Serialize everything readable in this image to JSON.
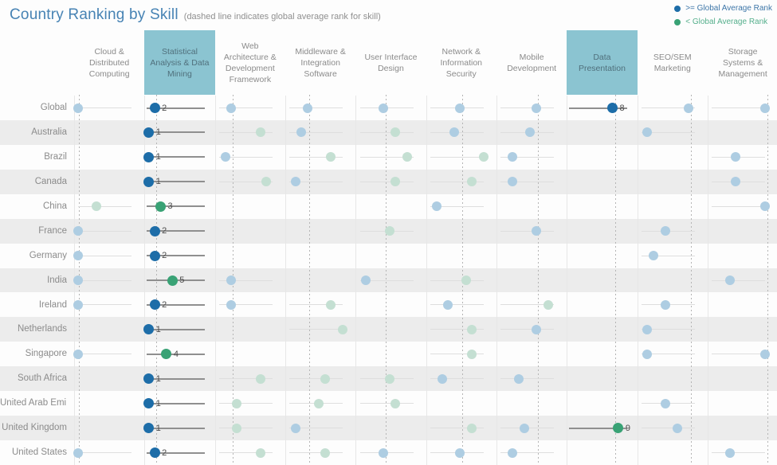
{
  "title": "Country Ranking by Skill",
  "subtitle": "(dashed line indicates global average rank for skill)",
  "legend": {
    "items": [
      {
        "label": ">= Global Average Rank",
        "dot_color": "#1d6da8",
        "text_color": "#3d76a8"
      },
      {
        "label": "< Global Average Rank",
        "dot_color": "#39a275",
        "text_color": "#55af8c"
      }
    ]
  },
  "colors": {
    "strong_blue": "#1d6da8",
    "strong_green": "#39a275",
    "light_blue": "#aecde2",
    "light_green": "#c4dfd2",
    "highlight_bg": "#8bc4d1",
    "highlight_text": "#50707c",
    "header_text": "#8b8b8b",
    "row_label_text": "#8b8b8b",
    "row_band": "#ececec",
    "title_text": "#4783b4",
    "subtitle_text": "#8f8f8f",
    "dashed_line": "#b4b4b4",
    "separator": "#e7e7e7",
    "axis_strong": "#8f8f8f",
    "axis_light": "#dedede",
    "value_text": "#4c4c4c"
  },
  "chart_data": {
    "type": "scatter",
    "title": "Country Ranking by Skill",
    "note": "Each cell shows a country's rank (1-10) for a skill; dashed line marks the global average rank for that skill; labeled dark dots appear in the two highlighted skill columns.",
    "columns": [
      {
        "label": "Cloud & Distributed Computing",
        "highlighted": false,
        "global_avg_rank": 1.1
      },
      {
        "label": "Statistical Analysis & Data Mining",
        "highlighted": true,
        "global_avg_rank": 2.26
      },
      {
        "label": "Web Architecture & Development Framework",
        "highlighted": false,
        "global_avg_rank": 3.3
      },
      {
        "label": "Middleware & Integration Software",
        "highlighted": false,
        "global_avg_rank": 4.3
      },
      {
        "label": "User Interface Design",
        "highlighted": false,
        "global_avg_rank": 5.33
      },
      {
        "label": "Network & Information Security",
        "highlighted": false,
        "global_avg_rank": 6.35
      },
      {
        "label": "Mobile Development",
        "highlighted": false,
        "global_avg_rank": 7.3
      },
      {
        "label": "Data Presentation",
        "highlighted": true,
        "global_avg_rank": 8.47
      },
      {
        "label": "SEO/SEM Marketing",
        "highlighted": false,
        "global_avg_rank": 9.4
      },
      {
        "label": "Storage Systems & Management",
        "highlighted": false,
        "global_avg_rank": 10.37
      }
    ],
    "rows": [
      {
        "label": "Global",
        "shaded": false,
        "dots": [
          {
            "col": 0,
            "rank": 1,
            "tone": "light_blue"
          },
          {
            "col": 1,
            "rank": 2,
            "tone": "strong_blue",
            "value": "2"
          },
          {
            "col": 2,
            "rank": 3,
            "tone": "light_blue"
          },
          {
            "col": 3,
            "rank": 4,
            "tone": "light_blue"
          },
          {
            "col": 4,
            "rank": 5,
            "tone": "light_blue"
          },
          {
            "col": 5,
            "rank": 6,
            "tone": "light_blue"
          },
          {
            "col": 6,
            "rank": 7,
            "tone": "light_blue"
          },
          {
            "col": 7,
            "rank": 8,
            "tone": "strong_blue",
            "value": "8"
          },
          {
            "col": 8,
            "rank": 9,
            "tone": "light_blue"
          },
          {
            "col": 9,
            "rank": 10,
            "tone": "light_blue"
          }
        ]
      },
      {
        "label": "Australia",
        "shaded": true,
        "dots": [
          {
            "col": 1,
            "rank": 1,
            "tone": "strong_blue",
            "value": "1"
          },
          {
            "col": 2,
            "rank": 8,
            "tone": "light_green"
          },
          {
            "col": 3,
            "rank": 3,
            "tone": "light_blue"
          },
          {
            "col": 4,
            "rank": 7,
            "tone": "light_green"
          },
          {
            "col": 5,
            "rank": 5,
            "tone": "light_blue"
          },
          {
            "col": 6,
            "rank": 6,
            "tone": "light_blue"
          },
          {
            "col": 8,
            "rank": 2,
            "tone": "light_blue"
          }
        ]
      },
      {
        "label": "Brazil",
        "shaded": false,
        "dots": [
          {
            "col": 1,
            "rank": 1,
            "tone": "strong_blue",
            "value": "1"
          },
          {
            "col": 2,
            "rank": 2,
            "tone": "light_blue"
          },
          {
            "col": 3,
            "rank": 8,
            "tone": "light_green"
          },
          {
            "col": 4,
            "rank": 9,
            "tone": "light_green"
          },
          {
            "col": 5,
            "rank": 10,
            "tone": "light_green"
          },
          {
            "col": 6,
            "rank": 3,
            "tone": "light_blue"
          },
          {
            "col": 9,
            "rank": 5,
            "tone": "light_blue"
          }
        ]
      },
      {
        "label": "Canada",
        "shaded": true,
        "dots": [
          {
            "col": 1,
            "rank": 1,
            "tone": "strong_blue",
            "value": "1"
          },
          {
            "col": 2,
            "rank": 9,
            "tone": "light_green"
          },
          {
            "col": 3,
            "rank": 2,
            "tone": "light_blue"
          },
          {
            "col": 4,
            "rank": 7,
            "tone": "light_green"
          },
          {
            "col": 5,
            "rank": 8,
            "tone": "light_green"
          },
          {
            "col": 6,
            "rank": 3,
            "tone": "light_blue"
          },
          {
            "col": 9,
            "rank": 5,
            "tone": "light_blue"
          }
        ]
      },
      {
        "label": "China",
        "shaded": false,
        "dots": [
          {
            "col": 0,
            "rank": 4,
            "tone": "light_green"
          },
          {
            "col": 1,
            "rank": 3,
            "tone": "strong_green",
            "value": "3"
          },
          {
            "col": 5,
            "rank": 2,
            "tone": "light_blue"
          },
          {
            "col": 9,
            "rank": 10,
            "tone": "light_blue"
          }
        ]
      },
      {
        "label": "France",
        "shaded": true,
        "dots": [
          {
            "col": 0,
            "rank": 1,
            "tone": "light_blue"
          },
          {
            "col": 1,
            "rank": 2,
            "tone": "strong_blue",
            "value": "2"
          },
          {
            "col": 4,
            "rank": 6,
            "tone": "light_green"
          },
          {
            "col": 6,
            "rank": 7,
            "tone": "light_blue"
          },
          {
            "col": 8,
            "rank": 5,
            "tone": "light_blue"
          }
        ]
      },
      {
        "label": "Germany",
        "shaded": false,
        "dots": [
          {
            "col": 0,
            "rank": 1,
            "tone": "light_blue"
          },
          {
            "col": 1,
            "rank": 2,
            "tone": "strong_blue",
            "value": "2"
          },
          {
            "col": 8,
            "rank": 3,
            "tone": "light_blue"
          }
        ]
      },
      {
        "label": "India",
        "shaded": true,
        "dots": [
          {
            "col": 0,
            "rank": 1,
            "tone": "light_blue"
          },
          {
            "col": 1,
            "rank": 5,
            "tone": "strong_green",
            "value": "5"
          },
          {
            "col": 2,
            "rank": 3,
            "tone": "light_blue"
          },
          {
            "col": 4,
            "rank": 2,
            "tone": "light_blue"
          },
          {
            "col": 5,
            "rank": 7,
            "tone": "light_green"
          },
          {
            "col": 9,
            "rank": 4,
            "tone": "light_blue"
          }
        ]
      },
      {
        "label": "Ireland",
        "shaded": false,
        "dots": [
          {
            "col": 0,
            "rank": 1,
            "tone": "light_blue"
          },
          {
            "col": 1,
            "rank": 2,
            "tone": "strong_blue",
            "value": "2"
          },
          {
            "col": 2,
            "rank": 3,
            "tone": "light_blue"
          },
          {
            "col": 3,
            "rank": 8,
            "tone": "light_green"
          },
          {
            "col": 5,
            "rank": 4,
            "tone": "light_blue"
          },
          {
            "col": 6,
            "rank": 9,
            "tone": "light_green"
          },
          {
            "col": 8,
            "rank": 5,
            "tone": "light_blue"
          }
        ]
      },
      {
        "label": "Netherlands",
        "shaded": true,
        "dots": [
          {
            "col": 1,
            "rank": 1,
            "tone": "strong_blue",
            "value": "1"
          },
          {
            "col": 3,
            "rank": 10,
            "tone": "light_green"
          },
          {
            "col": 5,
            "rank": 8,
            "tone": "light_green"
          },
          {
            "col": 6,
            "rank": 7,
            "tone": "light_blue"
          },
          {
            "col": 8,
            "rank": 2,
            "tone": "light_blue"
          }
        ]
      },
      {
        "label": "Singapore",
        "shaded": false,
        "dots": [
          {
            "col": 0,
            "rank": 1,
            "tone": "light_blue"
          },
          {
            "col": 1,
            "rank": 4,
            "tone": "strong_green",
            "value": "4"
          },
          {
            "col": 5,
            "rank": 8,
            "tone": "light_green"
          },
          {
            "col": 8,
            "rank": 2,
            "tone": "light_blue"
          },
          {
            "col": 9,
            "rank": 10,
            "tone": "light_blue"
          }
        ]
      },
      {
        "label": "South Africa",
        "shaded": true,
        "dots": [
          {
            "col": 1,
            "rank": 1,
            "tone": "strong_blue",
            "value": "1"
          },
          {
            "col": 2,
            "rank": 8,
            "tone": "light_green"
          },
          {
            "col": 3,
            "rank": 7,
            "tone": "light_green"
          },
          {
            "col": 4,
            "rank": 6,
            "tone": "light_green"
          },
          {
            "col": 5,
            "rank": 3,
            "tone": "light_blue"
          },
          {
            "col": 6,
            "rank": 4,
            "tone": "light_blue"
          }
        ]
      },
      {
        "label": "United Arab Emi..",
        "shaded": false,
        "dots": [
          {
            "col": 1,
            "rank": 1,
            "tone": "strong_blue",
            "value": "1"
          },
          {
            "col": 2,
            "rank": 4,
            "tone": "light_green"
          },
          {
            "col": 3,
            "rank": 6,
            "tone": "light_green"
          },
          {
            "col": 4,
            "rank": 7,
            "tone": "light_green"
          },
          {
            "col": 8,
            "rank": 5,
            "tone": "light_blue"
          }
        ]
      },
      {
        "label": "United Kingdom",
        "shaded": true,
        "dots": [
          {
            "col": 1,
            "rank": 1,
            "tone": "strong_blue",
            "value": "1"
          },
          {
            "col": 2,
            "rank": 4,
            "tone": "light_green"
          },
          {
            "col": 3,
            "rank": 2,
            "tone": "light_blue"
          },
          {
            "col": 5,
            "rank": 8,
            "tone": "light_green"
          },
          {
            "col": 6,
            "rank": 5,
            "tone": "light_blue"
          },
          {
            "col": 7,
            "rank": 9,
            "tone": "strong_green",
            "value": "9"
          },
          {
            "col": 8,
            "rank": 7,
            "tone": "light_blue"
          }
        ]
      },
      {
        "label": "United States",
        "shaded": false,
        "dots": [
          {
            "col": 0,
            "rank": 1,
            "tone": "light_blue"
          },
          {
            "col": 1,
            "rank": 2,
            "tone": "strong_blue",
            "value": "2"
          },
          {
            "col": 2,
            "rank": 8,
            "tone": "light_green"
          },
          {
            "col": 3,
            "rank": 7,
            "tone": "light_green"
          },
          {
            "col": 4,
            "rank": 5,
            "tone": "light_blue"
          },
          {
            "col": 5,
            "rank": 6,
            "tone": "light_blue"
          },
          {
            "col": 6,
            "rank": 3,
            "tone": "light_blue"
          },
          {
            "col": 9,
            "rank": 4,
            "tone": "light_blue"
          }
        ]
      }
    ]
  }
}
